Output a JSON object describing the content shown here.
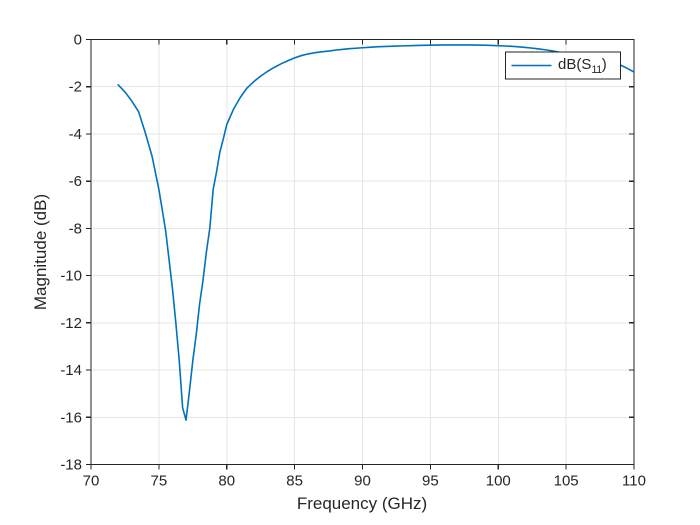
{
  "figure": {
    "background": "#ffffff",
    "axes_color": "#262626",
    "grid_color": "#e6e6e6"
  },
  "chart_data": {
    "type": "line",
    "title": "",
    "xlabel": "Frequency (GHz)",
    "ylabel": "Magnitude (dB)",
    "xlim": [
      70,
      110
    ],
    "ylim": [
      -18,
      0
    ],
    "xticks": [
      70,
      75,
      80,
      85,
      90,
      95,
      100,
      105,
      110
    ],
    "yticks": [
      0,
      -2,
      -4,
      -6,
      -8,
      -10,
      -12,
      -14,
      -16,
      -18
    ],
    "grid": true,
    "legend": {
      "position": "northeast",
      "entries": [
        {
          "label": "dB(S11)",
          "label_prefix": "dB(S",
          "label_subscript": "11",
          "label_suffix": ")",
          "color": "#0072BD"
        }
      ]
    },
    "series": [
      {
        "name": "dB(S11)",
        "color": "#0072BD",
        "min_point": {
          "x": 77.0,
          "y": -16.12
        },
        "x": [
          72,
          72.5,
          73,
          73.5,
          74,
          74.5,
          75,
          75.5,
          76,
          76.25,
          76.5,
          76.75,
          77,
          77.25,
          77.5,
          77.75,
          78,
          78.25,
          78.5,
          78.75,
          79,
          79.25,
          79.5,
          79.75,
          80,
          80.5,
          81,
          81.5,
          82,
          82.5,
          83,
          83.5,
          84,
          84.5,
          85,
          85.5,
          86,
          86.5,
          87,
          87.5,
          88,
          88.5,
          89,
          89.5,
          90,
          90.5,
          91,
          91.5,
          92,
          92.5,
          93,
          93.5,
          94,
          94.5,
          95,
          95.5,
          96,
          96.5,
          97,
          97.5,
          98,
          98.5,
          99,
          99.5,
          100,
          100.5,
          101,
          101.5,
          102,
          102.5,
          103,
          103.5,
          104,
          104.5,
          105,
          105.5,
          106,
          106.5,
          107,
          107.5,
          108,
          108.5,
          109,
          109.5,
          110
        ],
        "y": [
          -1.92,
          -2.22,
          -2.6,
          -3.05,
          -3.95,
          -4.95,
          -6.35,
          -8.1,
          -10.55,
          -12.0,
          -13.6,
          -15.6,
          -16.12,
          -14.9,
          -13.6,
          -12.5,
          -11.2,
          -10.2,
          -9.0,
          -8.0,
          -6.35,
          -5.6,
          -4.75,
          -4.2,
          -3.6,
          -2.95,
          -2.45,
          -2.05,
          -1.78,
          -1.55,
          -1.35,
          -1.18,
          -1.03,
          -0.9,
          -0.78,
          -0.68,
          -0.61,
          -0.56,
          -0.52,
          -0.49,
          -0.45,
          -0.42,
          -0.39,
          -0.37,
          -0.35,
          -0.33,
          -0.31,
          -0.3,
          -0.29,
          -0.28,
          -0.27,
          -0.26,
          -0.25,
          -0.245,
          -0.24,
          -0.235,
          -0.23,
          -0.23,
          -0.23,
          -0.23,
          -0.23,
          -0.235,
          -0.24,
          -0.25,
          -0.26,
          -0.275,
          -0.29,
          -0.31,
          -0.335,
          -0.365,
          -0.4,
          -0.44,
          -0.485,
          -0.535,
          -0.57,
          -0.62,
          -0.68,
          -0.74,
          -0.81,
          -0.88,
          -0.95,
          -1.01,
          -1.08,
          -1.22,
          -1.38
        ]
      }
    ]
  }
}
